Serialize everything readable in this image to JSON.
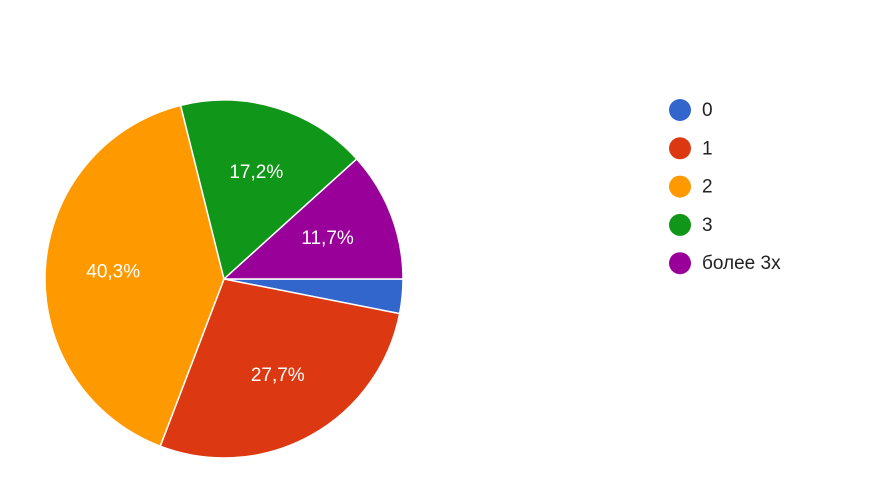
{
  "chart_data": {
    "type": "pie",
    "categories": [
      "0",
      "1",
      "2",
      "3",
      "более 3х"
    ],
    "values": [
      3.1,
      27.7,
      40.3,
      17.2,
      11.7
    ],
    "value_labels": [
      null,
      "27,7%",
      "40,3%",
      "17,2%",
      "11,7%"
    ],
    "colors": [
      "#3366cc",
      "#dc3912",
      "#ff9900",
      "#109618",
      "#990099"
    ],
    "legend": "right"
  }
}
